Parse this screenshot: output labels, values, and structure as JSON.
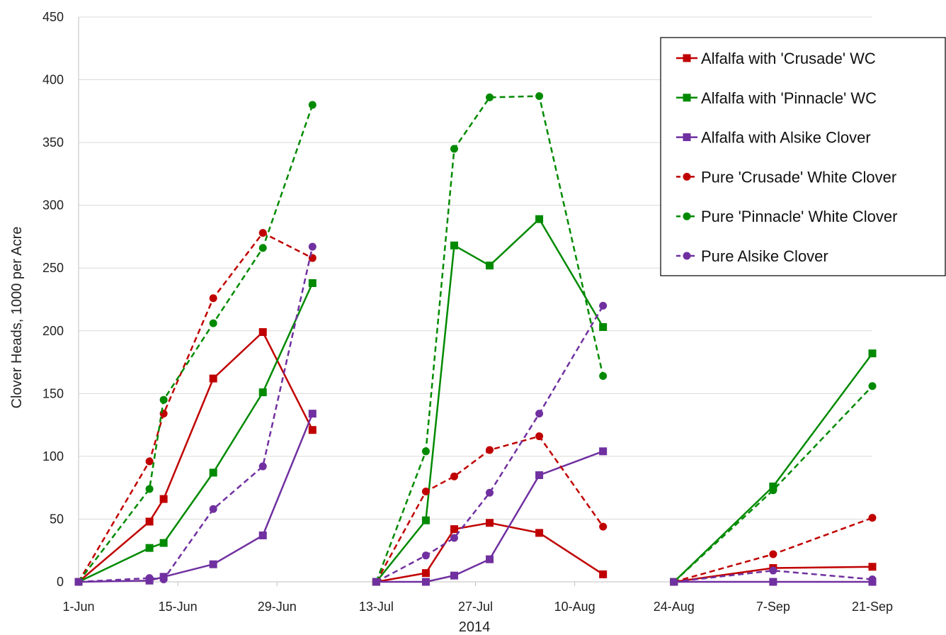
{
  "chart_data": {
    "type": "line",
    "title": "",
    "xlabel": "2014",
    "ylabel": "Clover Heads, 1000 per Acre",
    "ylim": [
      0,
      450
    ],
    "yticks": [
      0,
      50,
      100,
      150,
      200,
      250,
      300,
      350,
      400,
      450
    ],
    "xlim": [
      "2014-06-01",
      "2014-09-21"
    ],
    "xticks": [
      {
        "date": "2014-06-01",
        "label": "1-Jun"
      },
      {
        "date": "2014-06-15",
        "label": "15-Jun"
      },
      {
        "date": "2014-06-29",
        "label": "29-Jun"
      },
      {
        "date": "2014-07-13",
        "label": "13-Jul"
      },
      {
        "date": "2014-07-27",
        "label": "27-Jul"
      },
      {
        "date": "2014-08-10",
        "label": "10-Aug"
      },
      {
        "date": "2014-08-24",
        "label": "24-Aug"
      },
      {
        "date": "2014-09-07",
        "label": "7-Sep"
      },
      {
        "date": "2014-09-21",
        "label": "21-Sep"
      }
    ],
    "grid": "horizontal",
    "legend_position": "top-right",
    "series": [
      {
        "name": "Alfalfa with 'Crusade' WC",
        "color": "#c00000",
        "marker": "square",
        "dash": "solid",
        "segments": [
          [
            [
              "2014-06-01",
              0
            ],
            [
              "2014-06-11",
              48
            ],
            [
              "2014-06-13",
              66
            ],
            [
              "2014-06-20",
              162
            ],
            [
              "2014-06-27",
              199
            ],
            [
              "2014-07-04",
              121
            ]
          ],
          [
            [
              "2014-07-13",
              0
            ],
            [
              "2014-07-20",
              7
            ],
            [
              "2014-07-24",
              42
            ],
            [
              "2014-07-29",
              47
            ],
            [
              "2014-08-05",
              39
            ],
            [
              "2014-08-14",
              6
            ]
          ],
          [
            [
              "2014-08-24",
              0
            ],
            [
              "2014-09-07",
              11
            ],
            [
              "2014-09-21",
              12
            ]
          ]
        ]
      },
      {
        "name": "Alfalfa with 'Pinnacle' WC",
        "color": "#008a00",
        "marker": "square",
        "dash": "solid",
        "segments": [
          [
            [
              "2014-06-01",
              0
            ],
            [
              "2014-06-11",
              27
            ],
            [
              "2014-06-13",
              31
            ],
            [
              "2014-06-20",
              87
            ],
            [
              "2014-06-27",
              151
            ],
            [
              "2014-07-04",
              238
            ]
          ],
          [
            [
              "2014-07-13",
              0
            ],
            [
              "2014-07-20",
              49
            ],
            [
              "2014-07-24",
              268
            ],
            [
              "2014-07-29",
              252
            ],
            [
              "2014-08-05",
              289
            ],
            [
              "2014-08-14",
              203
            ]
          ],
          [
            [
              "2014-08-24",
              0
            ],
            [
              "2014-09-07",
              76
            ],
            [
              "2014-09-21",
              182
            ]
          ]
        ]
      },
      {
        "name": "Alfalfa with Alsike Clover",
        "color": "#7030a0",
        "marker": "square",
        "dash": "solid",
        "segments": [
          [
            [
              "2014-06-01",
              0
            ],
            [
              "2014-06-11",
              1
            ],
            [
              "2014-06-13",
              4
            ],
            [
              "2014-06-20",
              14
            ],
            [
              "2014-06-27",
              37
            ],
            [
              "2014-07-04",
              134
            ]
          ],
          [
            [
              "2014-07-13",
              0
            ],
            [
              "2014-07-20",
              0
            ],
            [
              "2014-07-24",
              5
            ],
            [
              "2014-07-29",
              18
            ],
            [
              "2014-08-05",
              85
            ],
            [
              "2014-08-14",
              104
            ]
          ],
          [
            [
              "2014-08-24",
              0
            ],
            [
              "2014-09-07",
              0
            ],
            [
              "2014-09-21",
              0
            ]
          ]
        ]
      },
      {
        "name": "Pure 'Crusade' White Clover",
        "color": "#c00000",
        "marker": "circle",
        "dash": "dashed",
        "segments": [
          [
            [
              "2014-06-01",
              0
            ],
            [
              "2014-06-11",
              96
            ],
            [
              "2014-06-13",
              134
            ],
            [
              "2014-06-20",
              226
            ],
            [
              "2014-06-27",
              278
            ],
            [
              "2014-07-04",
              258
            ]
          ],
          [
            [
              "2014-07-13",
              0
            ],
            [
              "2014-07-20",
              72
            ],
            [
              "2014-07-24",
              84
            ],
            [
              "2014-07-29",
              105
            ],
            [
              "2014-08-05",
              116
            ],
            [
              "2014-08-14",
              44
            ]
          ],
          [
            [
              "2014-08-24",
              0
            ],
            [
              "2014-09-07",
              22
            ],
            [
              "2014-09-21",
              51
            ]
          ]
        ]
      },
      {
        "name": "Pure 'Pinnacle' White Clover",
        "color": "#008a00",
        "marker": "circle",
        "dash": "dashed",
        "segments": [
          [
            [
              "2014-06-01",
              0
            ],
            [
              "2014-06-11",
              74
            ],
            [
              "2014-06-13",
              145
            ],
            [
              "2014-06-20",
              206
            ],
            [
              "2014-06-27",
              266
            ],
            [
              "2014-07-04",
              380
            ]
          ],
          [
            [
              "2014-07-13",
              0
            ],
            [
              "2014-07-20",
              104
            ],
            [
              "2014-07-24",
              345
            ],
            [
              "2014-07-29",
              386
            ],
            [
              "2014-08-05",
              387
            ],
            [
              "2014-08-14",
              164
            ]
          ],
          [
            [
              "2014-08-24",
              0
            ],
            [
              "2014-09-07",
              73
            ],
            [
              "2014-09-21",
              156
            ]
          ]
        ]
      },
      {
        "name": "Pure Alsike Clover",
        "color": "#7030a0",
        "marker": "circle",
        "dash": "dashed",
        "segments": [
          [
            [
              "2014-06-01",
              0
            ],
            [
              "2014-06-11",
              3
            ],
            [
              "2014-06-13",
              2
            ],
            [
              "2014-06-20",
              58
            ],
            [
              "2014-06-27",
              92
            ],
            [
              "2014-07-04",
              267
            ]
          ],
          [
            [
              "2014-07-13",
              0
            ],
            [
              "2014-07-20",
              21
            ],
            [
              "2014-07-24",
              35
            ],
            [
              "2014-07-29",
              71
            ],
            [
              "2014-08-05",
              134
            ],
            [
              "2014-08-14",
              220
            ]
          ],
          [
            [
              "2014-08-24",
              0
            ],
            [
              "2014-09-07",
              9
            ],
            [
              "2014-09-21",
              2
            ]
          ]
        ]
      }
    ]
  }
}
